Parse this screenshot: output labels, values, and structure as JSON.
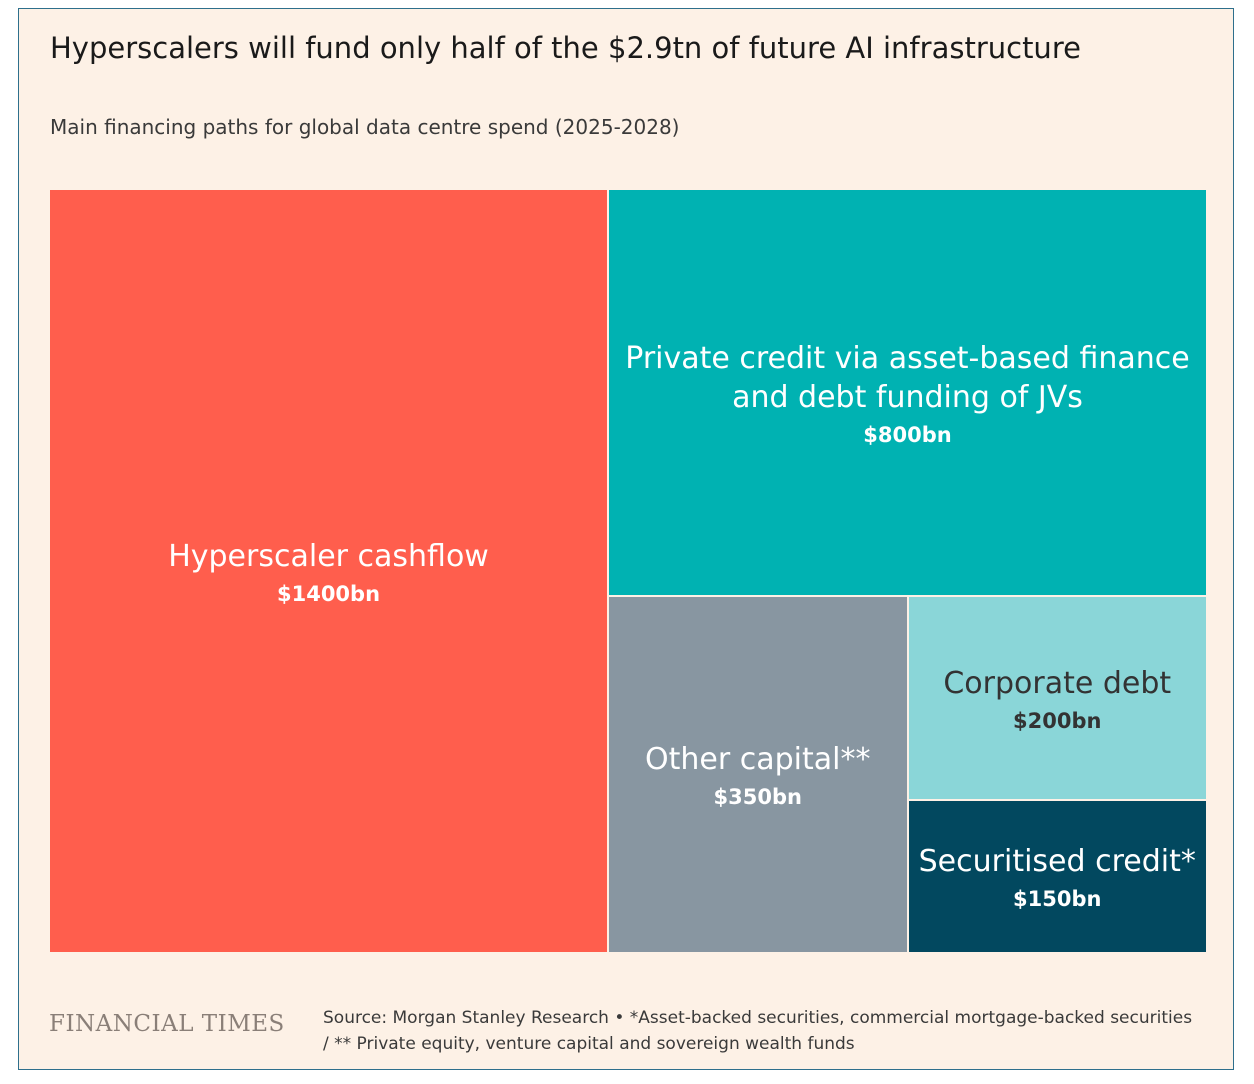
{
  "chart_data": {
    "type": "treemap",
    "title": "Hyperscalers will fund only half of the $2.9tn of future AI infrastructure",
    "subtitle": "Main financing paths for global data centre spend (2025-2028)",
    "unit": "$bn",
    "items": [
      {
        "name": "Hyperscaler cashflow",
        "value": 1400,
        "value_label": "$1400bn",
        "color": "#ff5e4d",
        "text_color": "#ffffff"
      },
      {
        "name": "Private credit via asset-based finance and debt funding of JVs",
        "value": 800,
        "value_label": "$800bn",
        "color": "#00b2b2",
        "text_color": "#ffffff"
      },
      {
        "name": "Other capital**",
        "value": 350,
        "value_label": "$350bn",
        "color": "#8896a1",
        "text_color": "#ffffff"
      },
      {
        "name": "Corporate debt",
        "value": 200,
        "value_label": "$200bn",
        "color": "#8ad6d8",
        "text_color": "#333333"
      },
      {
        "name": "Securitised credit*",
        "value": 150,
        "value_label": "$150bn",
        "color": "#02485f",
        "text_color": "#ffffff"
      }
    ]
  },
  "footer": {
    "logo_text": "FINANCIAL TIMES",
    "source_text": "Source: Morgan Stanley Research • *Asset-backed securities, commercial mortgage-backed securities / ** Private equity, venture capital and sovereign wealth funds"
  }
}
